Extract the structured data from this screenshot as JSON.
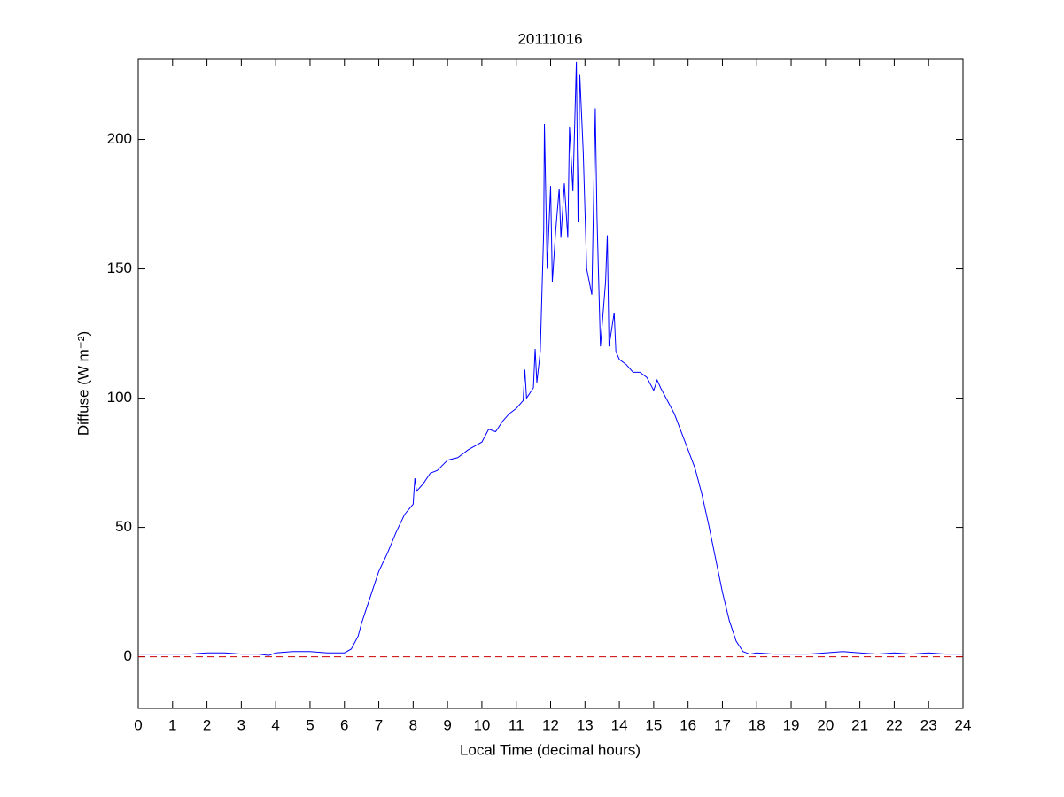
{
  "chart_data": {
    "type": "line",
    "title": "20111016",
    "xlabel": "Local Time (decimal hours)",
    "ylabel": "Diffuse (W m⁻²)",
    "x": [
      0,
      0.5,
      1,
      1.5,
      2,
      2.5,
      3,
      3.5,
      3.8,
      4,
      4.5,
      5,
      5.5,
      6,
      6.2,
      6.4,
      6.5,
      6.6,
      6.8,
      7,
      7.25,
      7.5,
      7.75,
      8,
      8.05,
      8.1,
      8.3,
      8.5,
      8.7,
      9,
      9.3,
      9.6,
      10,
      10.2,
      10.4,
      10.6,
      10.8,
      11,
      11.2,
      11.25,
      11.3,
      11.5,
      11.55,
      11.6,
      11.7,
      11.8,
      11.82,
      11.9,
      12.0,
      12.05,
      12.15,
      12.25,
      12.3,
      12.4,
      12.5,
      12.55,
      12.65,
      12.75,
      12.8,
      12.85,
      12.95,
      13.05,
      13.2,
      13.3,
      13.35,
      13.45,
      13.6,
      13.65,
      13.7,
      13.85,
      13.9,
      14,
      14.2,
      14.4,
      14.6,
      14.8,
      15,
      15.1,
      15.2,
      15.4,
      15.6,
      15.8,
      16,
      16.2,
      16.4,
      16.6,
      16.8,
      17,
      17.2,
      17.4,
      17.6,
      17.8,
      18,
      18.5,
      19,
      19.5,
      20,
      20.5,
      21,
      21.5,
      22,
      22.5,
      23,
      23.5,
      24
    ],
    "series": [
      {
        "color": "#0000ff",
        "values": [
          1,
          1,
          1,
          1,
          1.5,
          1.5,
          1,
          1,
          0.5,
          1.5,
          2,
          2,
          1.5,
          1.5,
          3,
          8,
          13,
          17,
          25,
          33,
          40,
          48,
          55,
          59,
          69,
          64,
          67,
          71,
          72,
          76,
          77,
          80,
          83,
          88,
          87,
          91,
          94,
          96,
          99,
          111,
          100,
          104,
          119,
          106,
          118,
          165,
          206,
          150,
          182,
          145,
          165,
          181,
          162,
          183,
          162,
          205,
          180,
          230,
          168,
          225,
          195,
          150,
          140,
          212,
          170,
          120,
          145,
          163,
          120,
          133,
          118,
          115,
          113,
          110,
          110,
          108,
          103,
          107,
          104,
          99,
          94,
          87,
          80,
          73,
          63,
          51,
          38,
          25,
          14,
          6,
          2,
          1,
          1.5,
          1,
          1,
          1,
          1.5,
          2,
          1.5,
          1,
          1.5,
          1,
          1.5,
          1,
          1
        ]
      }
    ],
    "reference_line": {
      "y": 0,
      "color": "#cc0000"
    },
    "xlim": [
      0,
      24
    ],
    "xticks": [
      0,
      1,
      2,
      3,
      4,
      5,
      6,
      7,
      8,
      9,
      10,
      11,
      12,
      13,
      14,
      15,
      16,
      17,
      18,
      19,
      20,
      21,
      22,
      23,
      24
    ],
    "ylim": [
      -20,
      231
    ],
    "yticks": [
      0,
      50,
      100,
      150,
      200
    ]
  }
}
